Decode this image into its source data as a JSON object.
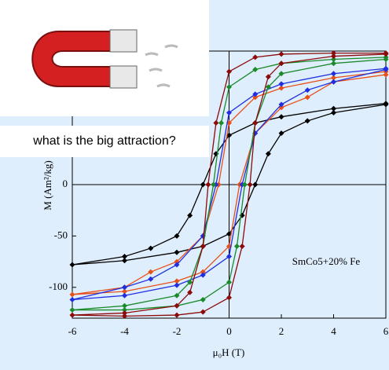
{
  "chart_data": {
    "type": "line",
    "caption": "what is the big attraction?",
    "annotation": "SmCo5+20% Fe",
    "x_label": "μ₀H (T)",
    "y_label": "M (Am²/kg)",
    "xlim": [
      -6,
      6
    ],
    "xticks": [
      -6,
      -4,
      -2,
      0,
      2,
      4,
      6
    ],
    "ylim": [
      -130,
      130
    ],
    "yticks": [
      -100,
      -50,
      0
    ],
    "series": [
      {
        "color": "#000000",
        "x": [
          6,
          4,
          2,
          1,
          0,
          -0.5,
          -1,
          -1.5,
          -2,
          -3,
          -4,
          -6,
          -4,
          -2,
          -1,
          0,
          0.5,
          1,
          1.5,
          2,
          3,
          4,
          6
        ],
        "values": [
          79,
          74,
          66,
          60,
          48,
          30,
          0,
          -30,
          -50,
          -62,
          -70,
          -78,
          -74,
          -66,
          -60,
          -48,
          -30,
          0,
          30,
          50,
          62,
          70,
          78
        ]
      },
      {
        "color": "#e8501a",
        "x": [
          6,
          4,
          2,
          1,
          0,
          -0.4,
          -1,
          -2,
          -3,
          -4,
          -6,
          -4,
          -2,
          -1,
          0,
          0.4,
          1,
          2,
          3,
          4,
          6
        ],
        "values": [
          110,
          104,
          94,
          85,
          60,
          0,
          -50,
          -75,
          -85,
          -100,
          -107,
          -104,
          -94,
          -85,
          -60,
          0,
          50,
          75,
          85,
          100,
          107
        ]
      },
      {
        "color": "#1f2fe0",
        "x": [
          6,
          4,
          2,
          1,
          0,
          -0.5,
          -1,
          -2,
          -3,
          -4,
          -6,
          -4,
          -2,
          -1,
          0,
          0.5,
          1,
          2,
          3,
          4,
          6
        ],
        "values": [
          113,
          108,
          98,
          88,
          70,
          0,
          -50,
          -78,
          -92,
          -100,
          -112,
          -108,
          -98,
          -88,
          -70,
          0,
          50,
          78,
          92,
          100,
          112
        ]
      },
      {
        "color": "#1a8a2a",
        "x": [
          6,
          4,
          2,
          1,
          0,
          -0.3,
          -0.6,
          -1,
          -1.5,
          -2,
          -4,
          -6,
          -4,
          -2,
          -1,
          0,
          0.3,
          0.6,
          1,
          1.5,
          2,
          4,
          6
        ],
        "values": [
          124,
          122,
          118,
          112,
          95,
          60,
          0,
          -60,
          -95,
          -108,
          -118,
          -122,
          -122,
          -118,
          -112,
          -95,
          -60,
          0,
          60,
          95,
          108,
          118,
          122
        ]
      },
      {
        "color": "#8b0a0a",
        "x": [
          6,
          4,
          2,
          1,
          0,
          -0.5,
          -0.8,
          -1,
          -1.5,
          -2,
          -4,
          -6,
          -4,
          -2,
          -1,
          0,
          0.5,
          0.8,
          1,
          1.5,
          2,
          4,
          6
        ],
        "values": [
          128,
          128,
          127,
          124,
          110,
          60,
          0,
          -60,
          -105,
          -118,
          -125,
          -127,
          -128,
          -127,
          -124,
          -110,
          -60,
          0,
          60,
          105,
          118,
          125,
          127
        ]
      }
    ]
  }
}
